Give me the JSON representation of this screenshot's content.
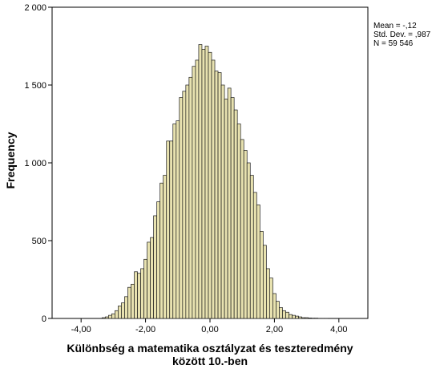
{
  "chart_data": {
    "type": "bar",
    "title": "",
    "xlabel_line1": "Különbség a matematika osztályzat és teszteredmény",
    "xlabel_line2": "között 10.-ben",
    "ylabel": "Frequency",
    "xlim": [
      -4.9,
      4.9
    ],
    "ylim": [
      0,
      2000
    ],
    "bin_width": 0.1,
    "x_ticks": [
      {
        "value": -4,
        "label": "-4,00"
      },
      {
        "value": -2,
        "label": "-2,00"
      },
      {
        "value": 0,
        "label": "0,00"
      },
      {
        "value": 2,
        "label": "2,00"
      },
      {
        "value": 4,
        "label": "4,00"
      }
    ],
    "y_ticks": [
      {
        "value": 0,
        "label": "0"
      },
      {
        "value": 500,
        "label": "500"
      },
      {
        "value": 1000,
        "label": "1 000"
      },
      {
        "value": 1500,
        "label": "1 500"
      },
      {
        "value": 2000,
        "label": "2 000"
      }
    ],
    "x": [
      -3.3,
      -3.2,
      -3.1,
      -3.0,
      -2.9,
      -2.8,
      -2.7,
      -2.6,
      -2.5,
      -2.4,
      -2.3,
      -2.2,
      -2.1,
      -2.0,
      -1.9,
      -1.8,
      -1.7,
      -1.6,
      -1.5,
      -1.4,
      -1.3,
      -1.2,
      -1.1,
      -1.0,
      -0.9,
      -0.8,
      -0.7,
      -0.6,
      -0.5,
      -0.4,
      -0.3,
      -0.2,
      -0.1,
      0.0,
      0.1,
      0.2,
      0.3,
      0.4,
      0.5,
      0.6,
      0.7,
      0.8,
      0.9,
      1.0,
      1.1,
      1.2,
      1.3,
      1.4,
      1.5,
      1.6,
      1.7,
      1.8,
      1.9,
      2.0,
      2.1,
      2.2,
      2.3,
      2.4,
      2.5,
      2.6,
      2.7,
      2.8,
      2.9,
      3.0,
      3.1,
      3.2,
      3.3,
      3.4,
      3.5,
      3.6
    ],
    "values": [
      5,
      10,
      20,
      30,
      50,
      80,
      100,
      140,
      200,
      220,
      300,
      290,
      320,
      380,
      490,
      520,
      660,
      750,
      870,
      920,
      1140,
      1140,
      1250,
      1270,
      1420,
      1460,
      1500,
      1550,
      1620,
      1660,
      1760,
      1730,
      1750,
      1710,
      1660,
      1590,
      1580,
      1500,
      1410,
      1480,
      1420,
      1340,
      1250,
      1150,
      1080,
      1000,
      920,
      810,
      730,
      560,
      470,
      320,
      260,
      160,
      110,
      70,
      50,
      40,
      25,
      20,
      15,
      10,
      5,
      5,
      3,
      2,
      2,
      1,
      1,
      1
    ]
  },
  "stats": {
    "mean": "Mean = -,12",
    "std": "Std. Dev. = ,987",
    "n": "N = 59 546"
  }
}
